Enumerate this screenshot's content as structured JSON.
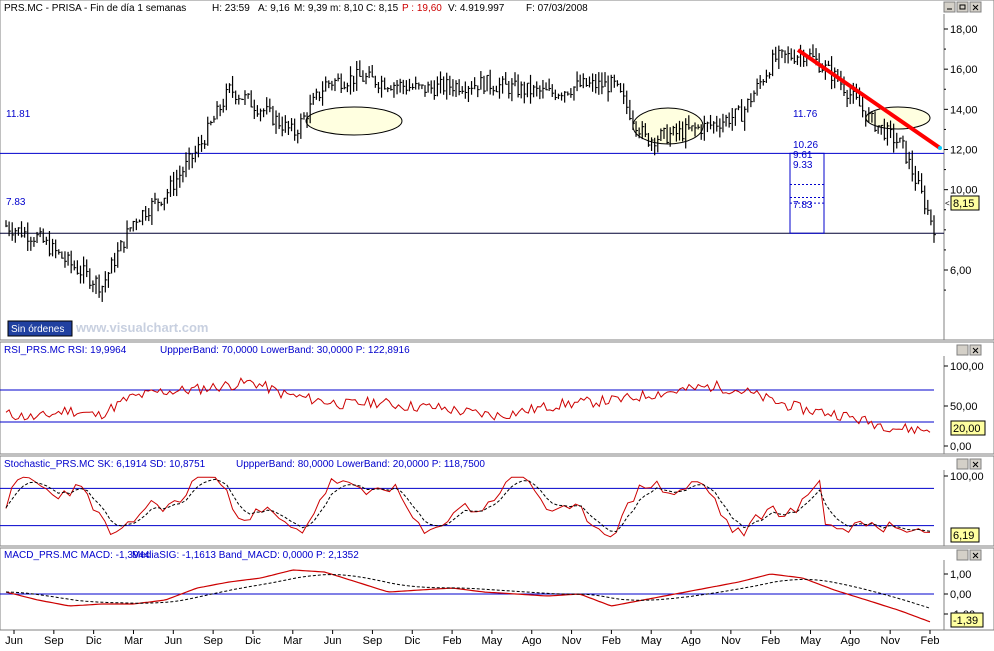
{
  "colors": {
    "background": "#ffffff",
    "price_bars": "#000000",
    "hline": "#0000cc",
    "trendline": "#ff0000",
    "indicator_line": "#cc0000",
    "indicator_header": "#0000cc",
    "ellipse_fill": "#ffffe0",
    "value_label_bg": "#ffffa0",
    "watermark": "#d0d8e8"
  },
  "price_panel": {
    "header": {
      "symbol": "PRS.MC - PRISA - Fin de día 1 semanas",
      "high": "H: 23:59",
      "alt": "A: 9,16",
      "max": "M: 9,39",
      "low": "m: 8,10",
      "close": "C: 8,15",
      "pct": "P : 19,60",
      "volume": "V: 4.919.997",
      "date": "F: 07/03/2008"
    },
    "ticks": [
      "18,00",
      "16,00",
      "14,00",
      "12,00",
      "10,00",
      "6,00"
    ],
    "last_value": "8,15",
    "level_labels": {
      "left_high": "11.81",
      "left_low": "7.83",
      "right_high": "11.76",
      "right_low": "7.83"
    },
    "fib_labels": [
      "10.26",
      "9.61",
      "9.33"
    ],
    "button": "Sin órdenes",
    "watermark": "www.visualchart.com"
  },
  "rsi_panel": {
    "header": "RSI_PRS.MC RSI: 19,9964",
    "params": "UppperBand: 70,0000  LowerBand: 30,0000  P: 122,8916",
    "ticks": [
      "100,00",
      "50,00",
      "0,00"
    ],
    "last_value": "20,00"
  },
  "stoch_panel": {
    "header": "Stochastic_PRS.MC SK: 6,1914  SD: 10,8751",
    "params": "UppperBand: 80,0000  LowerBand: 20,0000  P: 118,7500",
    "ticks": [
      "100,00"
    ],
    "last_value": "6,19"
  },
  "macd_panel": {
    "header": "MACD_PRS.MC MACD: -1,3944",
    "params": "MediaSIG: -1,1613  Band_MACD: 0,0000  P: 2,1352",
    "ticks": [
      "1,00",
      "0,00",
      "-1,00"
    ],
    "last_value": "-1,39"
  },
  "x_axis": {
    "labels": [
      "Jun",
      "Sep",
      "Dic",
      "Mar",
      "Jun",
      "Sep",
      "Dic",
      "Mar",
      "Jun",
      "Sep",
      "Dic",
      "Feb",
      "May",
      "Ago",
      "Nov",
      "Feb",
      "May",
      "Ago",
      "Nov",
      "Feb",
      "May",
      "Ago",
      "Nov",
      "Feb"
    ]
  },
  "chart_data": {
    "type": "line",
    "title": "PRS.MC - PRISA - Fin de día 1 semanas",
    "x": [
      "Jun",
      "Sep",
      "Dic",
      "Mar",
      "Jun",
      "Sep",
      "Dic",
      "Mar",
      "Jun",
      "Sep",
      "Dic",
      "Feb",
      "May",
      "Ago",
      "Nov",
      "Feb",
      "May",
      "Ago",
      "Nov",
      "Feb",
      "May",
      "Ago",
      "Nov",
      "Feb"
    ],
    "ylim": [
      4.5,
      18.5
    ],
    "horizontal_levels": [
      11.81,
      7.83
    ],
    "price_close": [
      8.2,
      7.6,
      6.3,
      5.2,
      8.5,
      9.8,
      12.0,
      15.0,
      14.0,
      12.8,
      15.3,
      15.6,
      15.3,
      15.0,
      15.2,
      15.3,
      15.0,
      14.8,
      15.2,
      15.2,
      12.5,
      12.8,
      13.2,
      13.8,
      16.5,
      16.8,
      15.5,
      13.5,
      12.2,
      8.15
    ],
    "rsi": {
      "ylim": [
        0,
        100
      ],
      "bands": [
        70,
        30
      ],
      "last": 19.9964
    },
    "stochastic": {
      "ylim": [
        0,
        100
      ],
      "bands": [
        80,
        20
      ],
      "sk_last": 6.1914,
      "sd_last": 10.8751
    },
    "macd": {
      "ylim": [
        -1.6,
        1.6
      ],
      "macd_last": -1.3944,
      "signal_last": -1.1613,
      "band": 0
    }
  }
}
